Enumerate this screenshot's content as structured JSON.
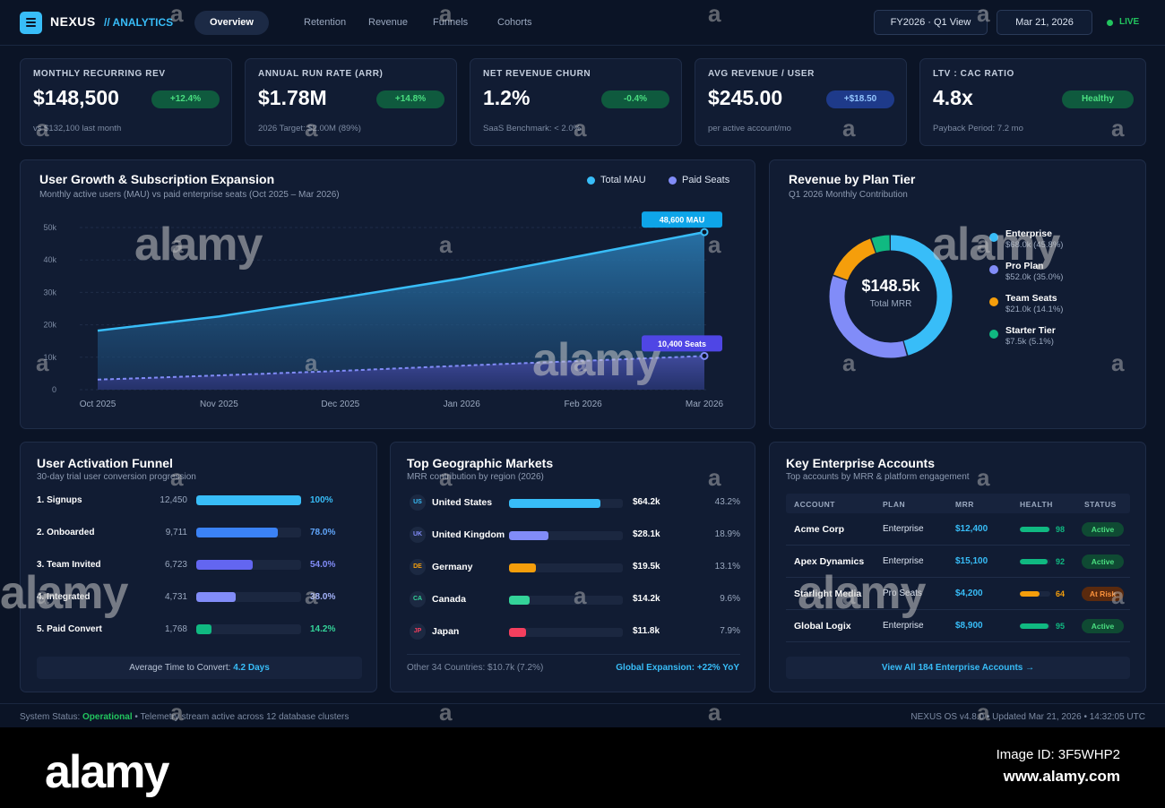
{
  "header": {
    "brand": "NEXUS",
    "brand_sub": "// ANALYTICS",
    "tabs": [
      {
        "label": "Overview",
        "active": true
      },
      {
        "label": "Retention"
      },
      {
        "label": "Revenue"
      },
      {
        "label": "Funnels"
      },
      {
        "label": "Cohorts"
      }
    ],
    "period": "FY2026 · Q1 View",
    "date": "Mar 21, 2026",
    "live": "LIVE"
  },
  "kpis": [
    {
      "label": "MONTHLY RECURRING REV",
      "value": "$148,500",
      "badge": "+12.4%",
      "badge_tone": "green",
      "sub": "vs $132,100 last month"
    },
    {
      "label": "ANNUAL RUN RATE (ARR)",
      "value": "$1.78M",
      "badge": "+14.8%",
      "badge_tone": "green",
      "sub": "2026 Target: $2.00M (89%)"
    },
    {
      "label": "NET REVENUE CHURN",
      "value": "1.2%",
      "badge": "-0.4%",
      "badge_tone": "green",
      "sub": "SaaS Benchmark: < 2.0%"
    },
    {
      "label": "AVG REVENUE / USER",
      "value": "$245.00",
      "badge": "+$18.50",
      "badge_tone": "blue",
      "sub": "per active account/mo"
    },
    {
      "label": "LTV : CAC RATIO",
      "value": "4.8x",
      "badge": "Healthy",
      "badge_tone": "green",
      "sub": "Payback Period: 7.2 mo"
    }
  ],
  "growth": {
    "title": "User Growth & Subscription Expansion",
    "subtitle": "Monthly active users (MAU) vs paid enterprise seats (Oct 2025 – Mar 2026)"
  },
  "chart_data": {
    "type": "area",
    "categories": [
      "Oct 2025",
      "Nov 2025",
      "Dec 2025",
      "Jan 2026",
      "Feb 2026",
      "Mar 2026"
    ],
    "series": [
      {
        "name": "Total MAU",
        "values": [
          18200,
          22600,
          28300,
          34300,
          41400,
          48600
        ],
        "color": "#38bdf8",
        "style": "solid"
      },
      {
        "name": "Paid Seats",
        "values": [
          3100,
          4400,
          5800,
          7400,
          8900,
          10400
        ],
        "color": "#818cf8",
        "style": "dashed"
      }
    ],
    "y_ticks": [
      "0",
      "10k",
      "20k",
      "30k",
      "40k",
      "50k"
    ],
    "ylim": [
      0,
      50000
    ],
    "end_labels": [
      "48,600 MAU",
      "10,400 Seats"
    ],
    "legend_position": "top-right",
    "grid": true
  },
  "plan_tier": {
    "title": "Revenue by Plan Tier",
    "subtitle": "Q1 2026 Monthly Contribution",
    "center_value": "$148.5k",
    "center_label": "Total MRR",
    "items": [
      {
        "name": "Enterprise",
        "value": "$68.0k (45.8%)",
        "share": 45.8,
        "color": "#38bdf8"
      },
      {
        "name": "Pro Plan",
        "value": "$52.0k (35.0%)",
        "share": 35.0,
        "color": "#818cf8"
      },
      {
        "name": "Team Seats",
        "value": "$21.0k (14.1%)",
        "share": 14.1,
        "color": "#f59e0b"
      },
      {
        "name": "Starter Tier",
        "value": "$7.5k (5.1%)",
        "share": 5.1,
        "color": "#10b981"
      }
    ]
  },
  "funnel": {
    "title": "User Activation Funnel",
    "subtitle": "30-day trial user conversion progression",
    "steps": [
      {
        "label": "1. Signups",
        "count": "12,450",
        "pct": "100%",
        "fraction": 1.0,
        "color": "#38bdf8",
        "pct_color": "#38bdf8"
      },
      {
        "label": "2. Onboarded",
        "count": "9,711",
        "pct": "78.0%",
        "fraction": 0.78,
        "color": "#3b82f6",
        "pct_color": "#60a5fa"
      },
      {
        "label": "3. Team Invited",
        "count": "6,723",
        "pct": "54.0%",
        "fraction": 0.54,
        "color": "#6366f1",
        "pct_color": "#818cf8"
      },
      {
        "label": "4. Integrated",
        "count": "4,731",
        "pct": "38.0%",
        "fraction": 0.38,
        "color": "#818cf8",
        "pct_color": "#a5b4fc"
      },
      {
        "label": "5. Paid Convert",
        "count": "1,768",
        "pct": "14.2%",
        "fraction": 0.142,
        "color": "#10b981",
        "pct_color": "#34d399"
      }
    ],
    "note_prefix": "Average Time to Convert:",
    "note_value": "4.2 Days"
  },
  "geo": {
    "title": "Top Geographic Markets",
    "subtitle": "MRR contribution by region (2026)",
    "rows": [
      {
        "code": "US",
        "name": "United States",
        "value": "$64.2k",
        "pct": "43.2%",
        "fraction": 0.8,
        "color": "#38bdf8"
      },
      {
        "code": "UK",
        "name": "United Kingdom",
        "value": "$28.1k",
        "pct": "18.9%",
        "fraction": 0.35,
        "color": "#818cf8"
      },
      {
        "code": "DE",
        "name": "Germany",
        "value": "$19.5k",
        "pct": "13.1%",
        "fraction": 0.24,
        "color": "#f59e0b"
      },
      {
        "code": "CA",
        "name": "Canada",
        "value": "$14.2k",
        "pct": "9.6%",
        "fraction": 0.18,
        "color": "#34d399"
      },
      {
        "code": "JP",
        "name": "Japan",
        "value": "$11.8k",
        "pct": "7.9%",
        "fraction": 0.15,
        "color": "#f43f5e"
      }
    ],
    "footer_left": "Other 34 Countries: $10.7k (7.2%)",
    "footer_right": "Global Expansion: +22% YoY"
  },
  "accounts": {
    "title": "Key Enterprise Accounts",
    "subtitle": "Top accounts by MRR & platform engagement",
    "columns": [
      "ACCOUNT",
      "PLAN",
      "MRR",
      "HEALTH",
      "STATUS"
    ],
    "rows": [
      {
        "account": "Acme Corp",
        "plan": "Enterprise",
        "mrr": "$12,400",
        "health": "98",
        "health_fraction": 0.98,
        "health_color": "#10b981",
        "status": "Active",
        "status_tone": "active"
      },
      {
        "account": "Apex Dynamics",
        "plan": "Enterprise",
        "mrr": "$15,100",
        "health": "92",
        "health_fraction": 0.92,
        "health_color": "#10b981",
        "status": "Active",
        "status_tone": "active"
      },
      {
        "account": "Starlight Media",
        "plan": "Pro Seats",
        "mrr": "$4,200",
        "health": "64",
        "health_fraction": 0.64,
        "health_color": "#f59e0b",
        "status": "At Risk",
        "status_tone": "risk"
      },
      {
        "account": "Global Logix",
        "plan": "Enterprise",
        "mrr": "$8,900",
        "health": "95",
        "health_fraction": 0.95,
        "health_color": "#10b981",
        "status": "Active",
        "status_tone": "active"
      }
    ],
    "view_all": "View All 184 Enterprise Accounts →"
  },
  "status_bar": {
    "left_prefix": "System Status:",
    "left_status": "Operational",
    "left_rest": "• Telemetry stream active across 12 database clusters",
    "right": "NEXUS OS v4.8.0 • Updated Mar 21, 2026 • 14:32:05 UTC"
  },
  "watermark": {
    "brand": "alamy",
    "glyph": "a",
    "image_id": "Image ID: 3F5WHP2",
    "url": "www.alamy.com"
  }
}
